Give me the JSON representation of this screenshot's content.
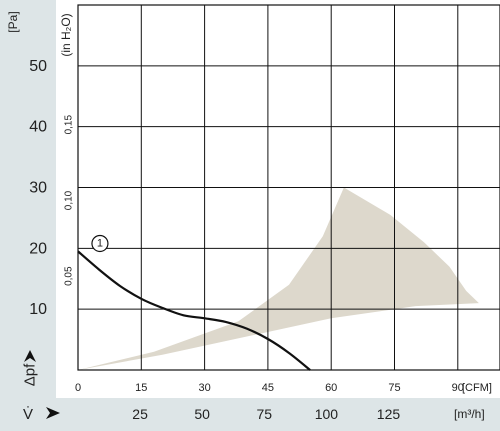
{
  "chart_data": {
    "type": "line",
    "y_unit_primary": "[Pa]",
    "y_unit_secondary": "(in H₂O)",
    "y_ticks_pa": [
      10,
      20,
      30,
      40,
      50
    ],
    "y_ticks_inh2o": [
      "0,05",
      "0,10",
      "0,15"
    ],
    "y_axis_symbol": "Δpf",
    "x_ticks_cfm": [
      0,
      15,
      30,
      45,
      60,
      75,
      90
    ],
    "x_unit_cfm": "[CFM]",
    "x_ticks_m3h": [
      25,
      50,
      75,
      100,
      125
    ],
    "x_unit_m3h": "[m³/h]",
    "x_axis_symbol": "V̇",
    "xlim_cfm": [
      0,
      100
    ],
    "ylim_pa": [
      0,
      60
    ],
    "grid": true,
    "curve_label": "1",
    "curve_label_at": {
      "x_cfm": 5.2,
      "y_pa": 20.8
    },
    "series": [
      {
        "values": [
          [
            0,
            19.5
          ],
          [
            5,
            16.5
          ],
          [
            10,
            13.8
          ],
          [
            15,
            11.7
          ],
          [
            20,
            10.2
          ],
          [
            25,
            9.0
          ],
          [
            30,
            8.5
          ],
          [
            35,
            7.9
          ],
          [
            40,
            6.8
          ],
          [
            45,
            5.1
          ],
          [
            50,
            2.8
          ],
          [
            55,
            0
          ]
        ]
      }
    ],
    "operating_area": [
      [
        0,
        0
      ],
      [
        20,
        2.5
      ],
      [
        40,
        5.5
      ],
      [
        60,
        8.5
      ],
      [
        80,
        10.5
      ],
      [
        95,
        11.0
      ],
      [
        92,
        13.0
      ],
      [
        88,
        17.0
      ],
      [
        82,
        21.0
      ],
      [
        74,
        25.5
      ],
      [
        63,
        30.0
      ],
      [
        58,
        22.0
      ],
      [
        50,
        14.0
      ],
      [
        38,
        8.0
      ],
      [
        18,
        3.0
      ]
    ]
  }
}
